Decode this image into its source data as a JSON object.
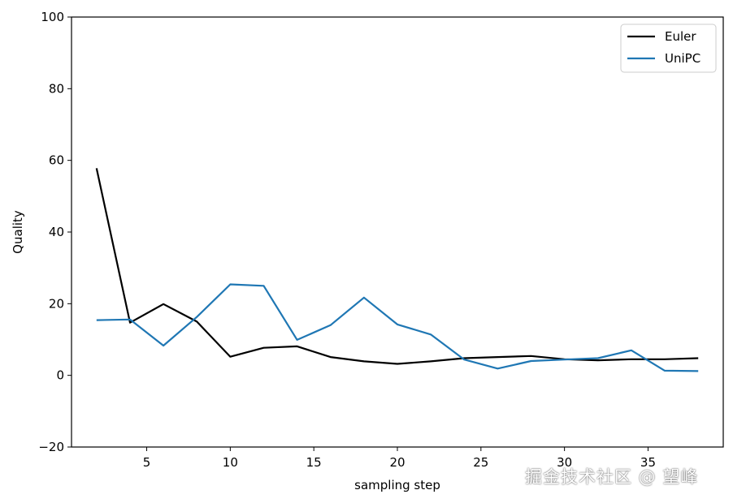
{
  "chart_data": {
    "type": "line",
    "title": "",
    "xlabel": "sampling step",
    "ylabel": "Quality",
    "xlim": [
      0.5,
      39.5
    ],
    "ylim": [
      -20,
      100
    ],
    "xticks": [
      5,
      10,
      15,
      20,
      25,
      30,
      35
    ],
    "yticks": [
      -20,
      0,
      20,
      40,
      60,
      80,
      100
    ],
    "x": [
      2,
      4,
      6,
      8,
      10,
      12,
      14,
      16,
      18,
      20,
      22,
      24,
      26,
      28,
      30,
      32,
      34,
      36,
      38
    ],
    "series": [
      {
        "name": "Euler",
        "color": "#000000",
        "values": [
          57.8,
          14.7,
          19.9,
          15.0,
          5.2,
          7.7,
          8.1,
          5.1,
          3.9,
          3.2,
          3.9,
          4.8,
          5.1,
          5.4,
          4.5,
          4.2,
          4.5,
          4.5,
          4.8
        ]
      },
      {
        "name": "UniPC",
        "color": "#1f77b4",
        "values": [
          15.4,
          15.6,
          8.3,
          16.3,
          25.4,
          25.0,
          9.9,
          14.0,
          21.7,
          14.2,
          11.4,
          4.4,
          1.9,
          4.0,
          4.4,
          4.8,
          7.0,
          1.3,
          1.2
        ]
      }
    ],
    "grid": false,
    "legend_position": "top-right"
  },
  "watermark": "掘金技术社区 @ 望峰"
}
